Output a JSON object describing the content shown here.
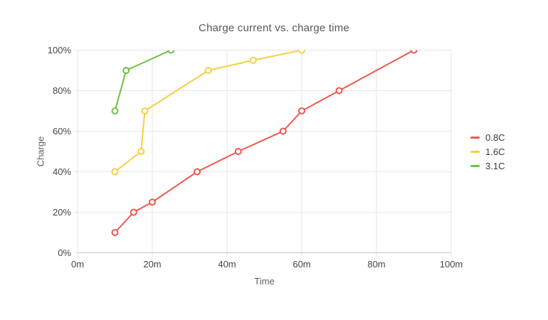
{
  "chart_data": {
    "type": "line",
    "title": "Charge current vs. charge time",
    "xlabel": "Time",
    "ylabel": "Charge",
    "xlim": [
      0,
      100
    ],
    "ylim": [
      0,
      100
    ],
    "grid": true,
    "legend_position": "right",
    "marker_style": "open-circle",
    "x_ticks": [
      {
        "value": 0,
        "label": "0m"
      },
      {
        "value": 20,
        "label": "20m"
      },
      {
        "value": 40,
        "label": "40m"
      },
      {
        "value": 60,
        "label": "60m"
      },
      {
        "value": 80,
        "label": "80m"
      },
      {
        "value": 100,
        "label": "100m"
      }
    ],
    "y_ticks": [
      {
        "value": 0,
        "label": "0%"
      },
      {
        "value": 20,
        "label": "20%"
      },
      {
        "value": 40,
        "label": "40%"
      },
      {
        "value": 60,
        "label": "60%"
      },
      {
        "value": 80,
        "label": "80%"
      },
      {
        "value": 100,
        "label": "100%"
      }
    ],
    "series": [
      {
        "name": "0.8C",
        "color": "#f0564a",
        "points": [
          [
            10,
            10
          ],
          [
            15,
            20
          ],
          [
            20,
            25
          ],
          [
            32,
            40
          ],
          [
            43,
            50
          ],
          [
            55,
            60
          ],
          [
            60,
            70
          ],
          [
            70,
            80
          ],
          [
            90,
            100
          ]
        ]
      },
      {
        "name": "1.6C",
        "color": "#f5ce42",
        "points": [
          [
            10,
            40
          ],
          [
            17,
            50
          ],
          [
            18,
            70
          ],
          [
            35,
            90
          ],
          [
            47,
            95
          ],
          [
            60,
            100
          ]
        ]
      },
      {
        "name": "3.1C",
        "color": "#6fc043",
        "points": [
          [
            10,
            70
          ],
          [
            13,
            90
          ],
          [
            25,
            100
          ]
        ]
      }
    ]
  }
}
